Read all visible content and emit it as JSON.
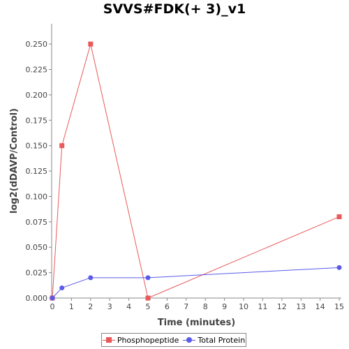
{
  "chart_data": {
    "type": "line",
    "title": "SVVS#FDK(+ 3)_v1",
    "xlabel": "Time (minutes)",
    "ylabel": "log2(dDAVP/Control)",
    "xlim": [
      0,
      15
    ],
    "ylim": [
      0,
      0.27
    ],
    "x_ticks": [
      "0",
      "1",
      "2",
      "3",
      "4",
      "5",
      "6",
      "7",
      "8",
      "9",
      "10",
      "11",
      "12",
      "13",
      "14",
      "15"
    ],
    "y_ticks": [
      "0.000",
      "0.025",
      "0.050",
      "0.075",
      "0.100",
      "0.125",
      "0.150",
      "0.175",
      "0.200",
      "0.225",
      "0.250"
    ],
    "grid": false,
    "legend_position": "bottom",
    "series": [
      {
        "name": "Phosphopeptide",
        "color": "#e8595a",
        "marker": "square",
        "x": [
          0,
          0.5,
          2,
          5,
          15
        ],
        "y": [
          0.0,
          0.15,
          0.25,
          0.0,
          0.08
        ]
      },
      {
        "name": "Total Protein",
        "color": "#5a5ae8",
        "marker": "circle",
        "x": [
          0,
          0.5,
          2,
          5,
          15
        ],
        "y": [
          0.0,
          0.01,
          0.02,
          0.02,
          0.03
        ]
      }
    ]
  }
}
